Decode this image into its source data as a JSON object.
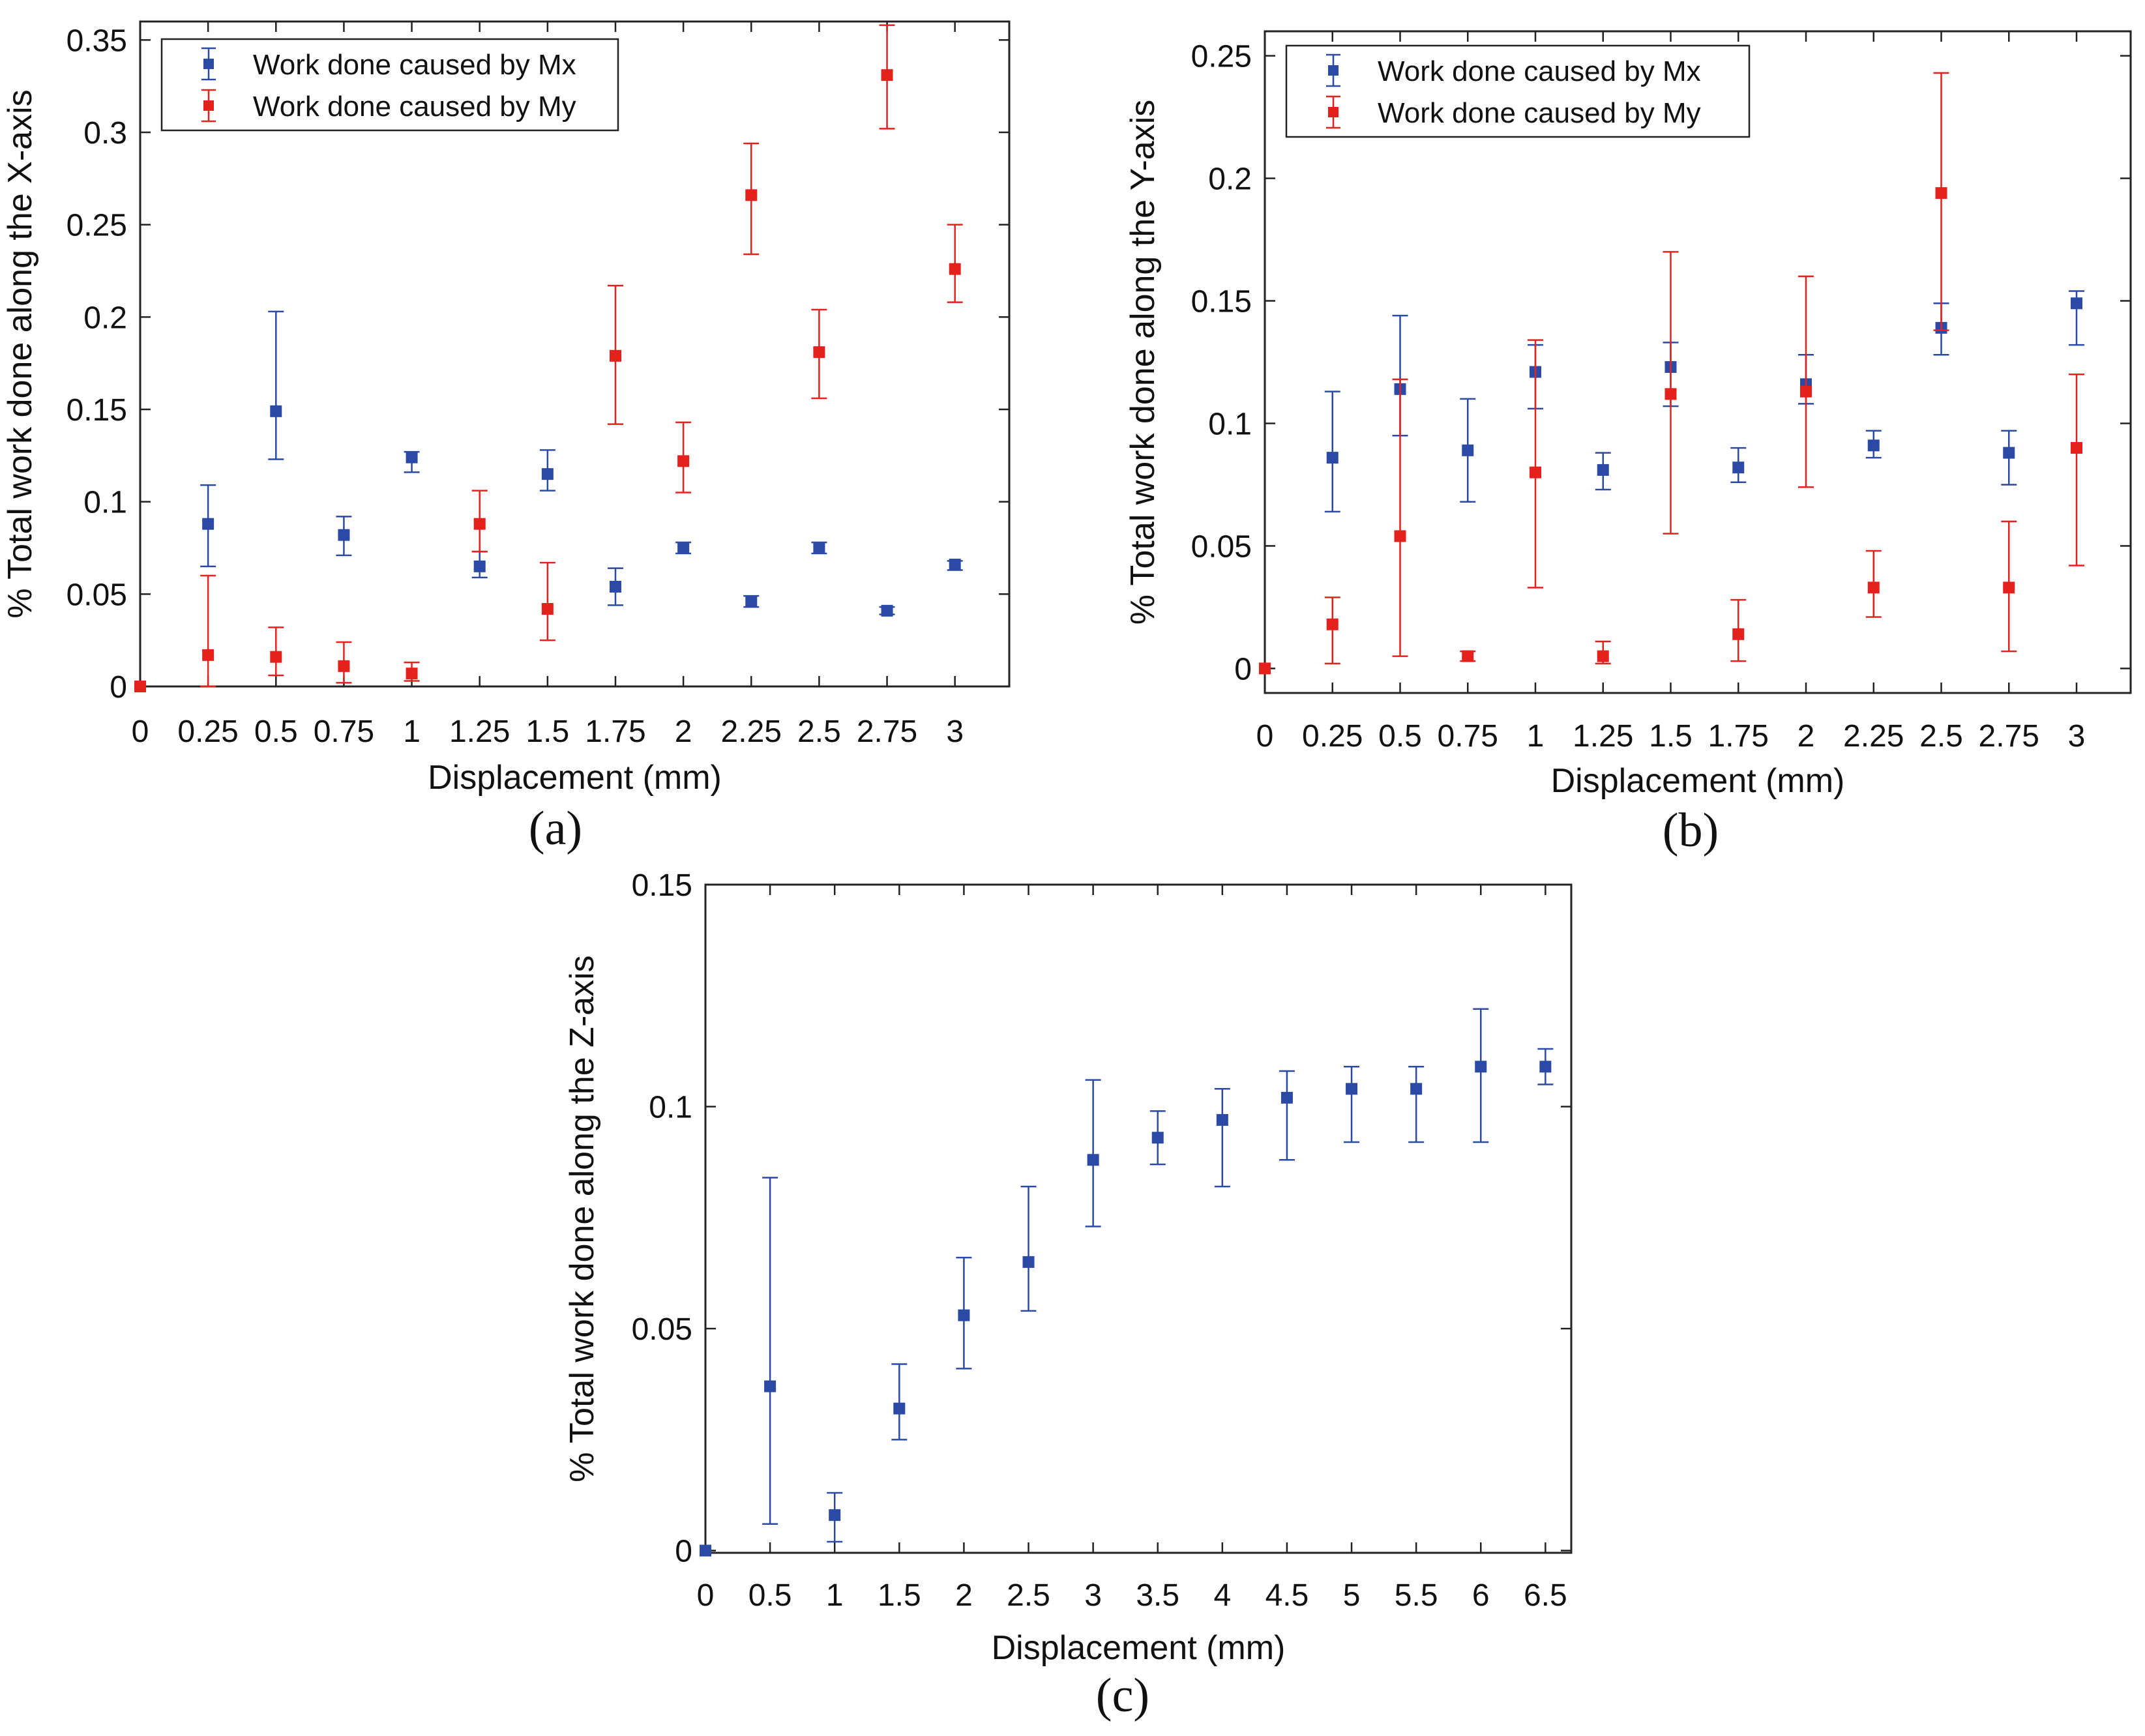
{
  "colors": {
    "mx": "#2b4aa6",
    "my": "#e5211d",
    "axis": "#222222"
  },
  "icons": {
    "mx_marker": "blue-square-marker",
    "my_marker": "red-square-marker"
  },
  "chart_data": [
    {
      "type": "scatter",
      "error_bars": true,
      "caption": "(a)",
      "xlabel": "Displacement (mm)",
      "ylabel": "% Total work done along the X-axis",
      "ylim": [
        0,
        0.36
      ],
      "yticks": [
        0,
        0.05,
        0.1,
        0.15,
        0.2,
        0.25,
        0.3,
        0.35
      ],
      "ytick_labels": [
        "0",
        "0.05",
        "0.1",
        "0.15",
        "0.2",
        "0.25",
        "0.3",
        "0.35"
      ],
      "xticks": [
        0,
        0.25,
        0.5,
        0.75,
        1,
        1.25,
        1.5,
        1.75,
        2,
        2.25,
        2.5,
        2.75,
        3
      ],
      "xtick_labels": [
        "0",
        "0.25",
        "0.5",
        "0.75",
        "1",
        "1.25",
        "1.5",
        "1.75",
        "2",
        "2.25",
        "2.5",
        "2.75",
        "3"
      ],
      "xlim": [
        0,
        3.2
      ],
      "grid": false,
      "legend_position": "top-left",
      "series": [
        {
          "name": "Work done caused by Mx",
          "color_key": "mx",
          "x": [
            0.25,
            0.5,
            0.75,
            1,
            1.25,
            1.5,
            1.75,
            2,
            2.25,
            2.5,
            2.75,
            3
          ],
          "y": [
            0.088,
            0.149,
            0.082,
            0.124,
            0.065,
            0.115,
            0.054,
            0.075,
            0.046,
            0.075,
            0.041,
            0.066
          ],
          "lower": [
            0.065,
            0.123,
            0.071,
            0.116,
            0.059,
            0.106,
            0.044,
            0.072,
            0.043,
            0.072,
            0.039,
            0.063
          ],
          "upper": [
            0.109,
            0.203,
            0.092,
            0.127,
            0.073,
            0.128,
            0.064,
            0.078,
            0.049,
            0.078,
            0.043,
            0.068
          ]
        },
        {
          "name": "Work done caused by My",
          "color_key": "my",
          "x": [
            0,
            0.25,
            0.5,
            0.75,
            1,
            1.25,
            1.5,
            1.75,
            2,
            2.25,
            2.5,
            2.75,
            3
          ],
          "y": [
            0,
            0.017,
            0.016,
            0.011,
            0.007,
            0.088,
            0.042,
            0.179,
            0.122,
            0.266,
            0.181,
            0.331,
            0.226
          ],
          "lower": [
            0,
            0,
            0.006,
            0.002,
            0.003,
            0.073,
            0.025,
            0.142,
            0.105,
            0.234,
            0.156,
            0.302,
            0.208
          ],
          "upper": [
            0,
            0.06,
            0.032,
            0.024,
            0.013,
            0.106,
            0.067,
            0.217,
            0.143,
            0.294,
            0.204,
            0.358,
            0.25
          ]
        }
      ]
    },
    {
      "type": "scatter",
      "error_bars": true,
      "caption": "(b)",
      "xlabel": "Displacement (mm)",
      "ylabel": "% Total work done along the Y-axis",
      "ylim": [
        -0.01,
        0.26
      ],
      "yticks": [
        0,
        0.05,
        0.1,
        0.15,
        0.2,
        0.25
      ],
      "ytick_labels": [
        "0",
        "0.05",
        "0.1",
        "0.15",
        "0.2",
        "0.25"
      ],
      "xticks": [
        0,
        0.25,
        0.5,
        0.75,
        1,
        1.25,
        1.5,
        1.75,
        2,
        2.25,
        2.5,
        2.75,
        3
      ],
      "xtick_labels": [
        "0",
        "0.25",
        "0.5",
        "0.75",
        "1",
        "1.25",
        "1.5",
        "1.75",
        "2",
        "2.25",
        "2.5",
        "2.75",
        "3"
      ],
      "xlim": [
        0,
        3.2
      ],
      "grid": false,
      "legend_position": "top-left",
      "series": [
        {
          "name": "Work done caused by Mx",
          "color_key": "mx",
          "x": [
            0.25,
            0.5,
            0.75,
            1,
            1.25,
            1.5,
            1.75,
            2,
            2.25,
            2.5,
            2.75,
            3
          ],
          "y": [
            0.086,
            0.114,
            0.089,
            0.121,
            0.081,
            0.123,
            0.082,
            0.116,
            0.091,
            0.139,
            0.088,
            0.149
          ],
          "lower": [
            0.064,
            0.095,
            0.068,
            0.106,
            0.073,
            0.107,
            0.076,
            0.108,
            0.086,
            0.128,
            0.075,
            0.132
          ],
          "upper": [
            0.113,
            0.144,
            0.11,
            0.132,
            0.088,
            0.133,
            0.09,
            0.128,
            0.097,
            0.149,
            0.097,
            0.154
          ]
        },
        {
          "name": "Work done caused by My",
          "color_key": "my",
          "x": [
            0,
            0.25,
            0.5,
            0.75,
            1,
            1.25,
            1.5,
            1.75,
            2,
            2.25,
            2.5,
            2.75,
            3
          ],
          "y": [
            0,
            0.018,
            0.054,
            0.005,
            0.08,
            0.005,
            0.112,
            0.014,
            0.113,
            0.033,
            0.194,
            0.033,
            0.09
          ],
          "lower": [
            0,
            0.002,
            0.005,
            0.003,
            0.033,
            0.002,
            0.055,
            0.003,
            0.074,
            0.021,
            0.138,
            0.007,
            0.042
          ],
          "upper": [
            0,
            0.029,
            0.118,
            0.007,
            0.134,
            0.011,
            0.17,
            0.028,
            0.16,
            0.048,
            0.243,
            0.06,
            0.12
          ]
        }
      ]
    },
    {
      "type": "scatter",
      "error_bars": true,
      "caption": "(c)",
      "xlabel": "Displacement (mm)",
      "ylabel": "% Total work done along the Z-axis",
      "ylim": [
        -0.0005,
        0.15
      ],
      "yticks": [
        0,
        0.05,
        0.1,
        0.15
      ],
      "ytick_labels": [
        "0",
        "0.05",
        "0.1",
        "0.15"
      ],
      "xticks": [
        0,
        0.5,
        1,
        1.5,
        2,
        2.5,
        3,
        3.5,
        4,
        4.5,
        5,
        5.5,
        6,
        6.5
      ],
      "xtick_labels": [
        "0",
        "0.5",
        "1",
        "1.5",
        "2",
        "2.5",
        "3",
        "3.5",
        "4",
        "4.5",
        "5",
        "5.5",
        "6",
        "6.5"
      ],
      "xlim": [
        0,
        6.7
      ],
      "grid": false,
      "series": [
        {
          "color_key": "mx",
          "x": [
            0,
            0.5,
            1,
            1.5,
            2,
            2.5,
            3,
            3.5,
            4,
            4.5,
            5,
            5.5,
            6,
            6.5
          ],
          "y": [
            0,
            0.037,
            0.008,
            0.032,
            0.053,
            0.065,
            0.088,
            0.093,
            0.097,
            0.102,
            0.104,
            0.104,
            0.109,
            0.109
          ],
          "lower": [
            0,
            0.006,
            0.002,
            0.025,
            0.041,
            0.054,
            0.073,
            0.087,
            0.082,
            0.088,
            0.092,
            0.092,
            0.092,
            0.105
          ],
          "upper": [
            0,
            0.084,
            0.013,
            0.042,
            0.066,
            0.082,
            0.106,
            0.099,
            0.104,
            0.108,
            0.109,
            0.109,
            0.122,
            0.113
          ]
        }
      ]
    }
  ]
}
